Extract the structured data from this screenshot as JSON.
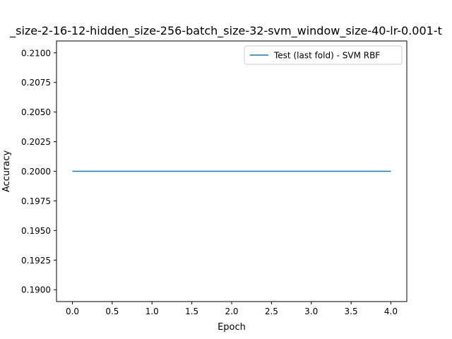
{
  "chart_data": {
    "type": "line",
    "title": "_size-2-16-12-hidden_size-256-batch_size-32-svm_window_size-40-lr-0.001-t",
    "xlabel": "Epoch",
    "ylabel": "Accuracy",
    "xlim": [
      -0.2,
      4.2
    ],
    "ylim": [
      0.189,
      0.211
    ],
    "xticks": [
      0.0,
      0.5,
      1.0,
      1.5,
      2.0,
      2.5,
      3.0,
      3.5,
      4.0
    ],
    "xtick_labels": [
      "0.0",
      "0.5",
      "1.0",
      "1.5",
      "2.0",
      "2.5",
      "3.0",
      "3.5",
      "4.0"
    ],
    "yticks": [
      0.19,
      0.1925,
      0.195,
      0.1975,
      0.2,
      0.2025,
      0.205,
      0.2075,
      0.21
    ],
    "ytick_labels": [
      "0.1900",
      "0.1925",
      "0.1950",
      "0.1975",
      "0.2000",
      "0.2025",
      "0.2050",
      "0.2075",
      "0.2100"
    ],
    "grid": false,
    "legend_position": "top-right",
    "series": [
      {
        "name": "Test (last fold) - SVM RBF",
        "color": "#1f77b4",
        "x": [
          0,
          1,
          2,
          3,
          4
        ],
        "y": [
          0.2,
          0.2,
          0.2,
          0.2,
          0.2
        ]
      }
    ]
  }
}
